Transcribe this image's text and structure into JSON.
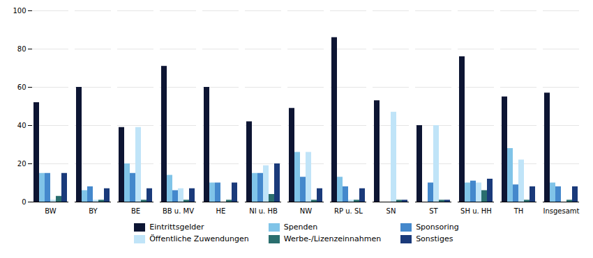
{
  "chart_data": {
    "type": "bar",
    "categories": [
      "BW",
      "BY",
      "BE",
      "BB u. MV",
      "HE",
      "NI u. HB",
      "NW",
      "RP u. SL",
      "SN",
      "ST",
      "SH u. HH",
      "TH",
      "Insgesamt"
    ],
    "series": [
      {
        "name": "Eintrittsgelder",
        "color": "#0d1533",
        "values": [
          52,
          60,
          39,
          71,
          60,
          42,
          49,
          86,
          53,
          40,
          76,
          55,
          57
        ]
      },
      {
        "name": "Spenden",
        "color": "#80c4e8",
        "values": [
          15,
          6,
          20,
          14,
          10,
          15,
          26,
          13,
          0,
          0,
          10,
          28,
          10
        ]
      },
      {
        "name": "Sponsoring",
        "color": "#4488cc",
        "values": [
          15,
          8,
          15,
          6,
          10,
          15,
          13,
          8,
          0,
          10,
          11,
          9,
          8
        ]
      },
      {
        "name": "Öffentliche Zuwendungen",
        "color": "#c0e4f8",
        "values": [
          1,
          1,
          39,
          7,
          0,
          19,
          26,
          1,
          47,
          40,
          10,
          22,
          0
        ]
      },
      {
        "name": "Werbe-/Lizenzeinnahmen",
        "color": "#2a6e6e",
        "values": [
          3,
          1,
          1,
          1,
          1,
          4,
          1,
          1,
          1,
          1,
          6,
          1,
          1
        ]
      },
      {
        "name": "Sonstiges",
        "color": "#1a3a7a",
        "values": [
          15,
          7,
          7,
          7,
          10,
          20,
          7,
          7,
          1,
          1,
          12,
          8,
          8
        ]
      }
    ],
    "ylim": [
      0,
      100
    ],
    "yticks": [
      0,
      20,
      40,
      60,
      80,
      100
    ],
    "grid": true,
    "legend": "bottom"
  }
}
